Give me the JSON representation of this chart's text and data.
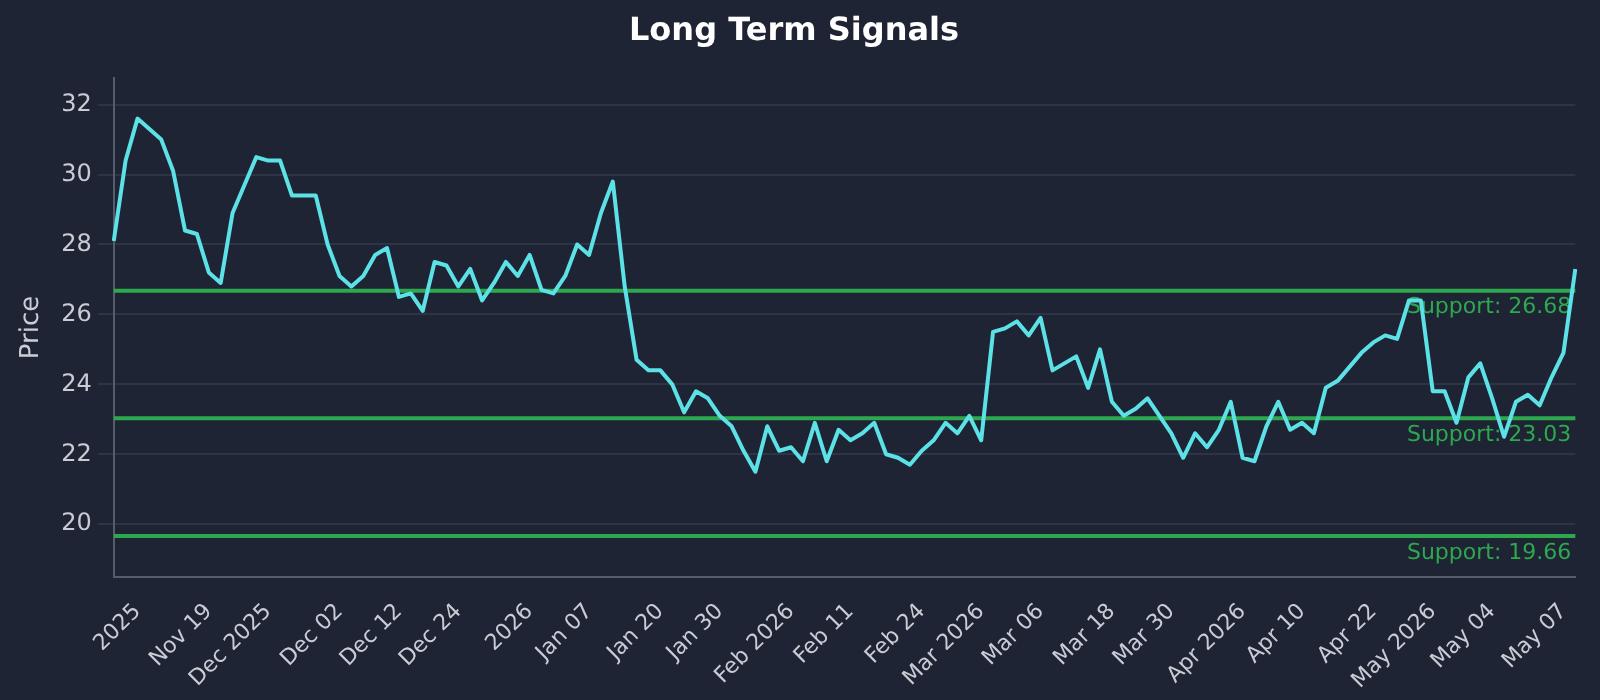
{
  "chart_data": {
    "type": "line",
    "title": "Long Term Signals",
    "ylabel": "Price",
    "categories": [
      null,
      null,
      "2025",
      null,
      null,
      null,
      null,
      null,
      "Nov 19",
      null,
      null,
      null,
      null,
      "Dec 2025",
      null,
      null,
      null,
      null,
      null,
      "Dec 02",
      null,
      null,
      null,
      null,
      "Dec 12",
      null,
      null,
      null,
      null,
      "Dec 24",
      null,
      null,
      null,
      null,
      null,
      "2026",
      null,
      null,
      null,
      null,
      "Jan 07",
      null,
      null,
      null,
      null,
      null,
      "Jan 20",
      null,
      null,
      null,
      null,
      "Jan 30",
      null,
      null,
      null,
      null,
      null,
      "Feb 2026",
      null,
      null,
      null,
      null,
      "Feb 11",
      null,
      null,
      null,
      null,
      null,
      "Feb 24",
      null,
      null,
      null,
      null,
      "Mar 2026",
      null,
      null,
      null,
      null,
      "Mar 06",
      null,
      null,
      null,
      null,
      null,
      "Mar 18",
      null,
      null,
      null,
      null,
      "Mar 30",
      null,
      null,
      null,
      null,
      null,
      "Apr 2026",
      null,
      null,
      null,
      null,
      "Apr 10",
      null,
      null,
      null,
      null,
      null,
      "Apr 22",
      null,
      null,
      null,
      null,
      "May 2026",
      null,
      null,
      null,
      null,
      "May 04",
      null,
      null,
      null,
      null,
      null,
      "May 07",
      null
    ],
    "series": [
      {
        "color": "#5ce1e6",
        "values": [
          28.1,
          30.4,
          31.6,
          31.3,
          31.0,
          30.1,
          28.4,
          28.3,
          27.2,
          26.9,
          28.9,
          29.7,
          30.5,
          30.4,
          30.4,
          29.4,
          29.4,
          29.4,
          28.0,
          27.1,
          26.8,
          27.1,
          27.7,
          27.9,
          26.5,
          26.6,
          26.1,
          27.5,
          27.4,
          26.8,
          27.3,
          26.4,
          26.9,
          27.5,
          27.1,
          27.7,
          26.7,
          26.6,
          27.1,
          28.0,
          27.7,
          28.9,
          29.8,
          26.8,
          24.7,
          24.4,
          24.4,
          24.0,
          23.2,
          23.8,
          23.6,
          23.1,
          22.8,
          22.1,
          21.5,
          22.8,
          22.1,
          22.2,
          21.8,
          22.9,
          21.8,
          22.7,
          22.4,
          22.6,
          22.9,
          22.0,
          21.9,
          21.7,
          22.1,
          22.4,
          22.9,
          22.6,
          23.1,
          22.4,
          25.5,
          25.6,
          25.8,
          25.4,
          25.9,
          24.4,
          24.6,
          24.8,
          23.9,
          25.0,
          23.5,
          23.1,
          23.3,
          23.6,
          23.1,
          22.6,
          21.9,
          22.6,
          22.2,
          22.7,
          23.5,
          21.9,
          21.8,
          22.8,
          23.5,
          22.7,
          22.9,
          22.6,
          23.9,
          24.1,
          24.5,
          24.9,
          25.2,
          25.4,
          25.3,
          26.4,
          26.4,
          23.8,
          23.8,
          22.9,
          24.2,
          24.6,
          23.6,
          22.5,
          23.5,
          23.7,
          23.4,
          24.2,
          24.9,
          27.3
        ]
      }
    ],
    "ylim": [
      18.5,
      32.75
    ],
    "yticks": [
      20,
      22,
      24,
      26,
      28,
      30,
      32
    ],
    "grid": "y",
    "legend": false,
    "marker": "none",
    "line_style": "solid",
    "ref_lines": [
      {
        "axis": "y",
        "value": 26.68,
        "label": "Support: 26.68",
        "color": "#2ea84f"
      },
      {
        "axis": "y",
        "value": 23.03,
        "label": "Support: 23.03",
        "color": "#2ea84f"
      },
      {
        "axis": "y",
        "value": 19.66,
        "label": "Support: 19.66",
        "color": "#2ea84f"
      }
    ]
  }
}
